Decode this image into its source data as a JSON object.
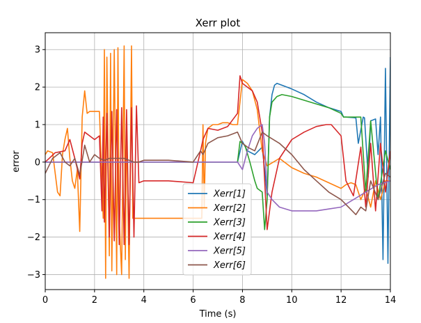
{
  "chart_data": {
    "type": "line",
    "title": "Xerr plot",
    "xlabel": "Time (s)",
    "ylabel": "error",
    "xlim": [
      0,
      14
    ],
    "ylim": [
      -3.4,
      3.45
    ],
    "xticks": [
      0,
      2,
      4,
      6,
      8,
      10,
      12,
      14
    ],
    "yticks": [
      -3,
      -2,
      -1,
      0,
      1,
      2,
      3
    ],
    "grid": true,
    "legend_position": "lower-center",
    "series": [
      {
        "name": "Xerr[1]",
        "color": "#1f77b4",
        "x": [
          0,
          7.8,
          8.0,
          8.2,
          8.5,
          8.8,
          8.9,
          9.0,
          9.1,
          9.2,
          9.3,
          9.4,
          9.6,
          10.0,
          10.5,
          11.0,
          11.5,
          12.0,
          12.1,
          12.2,
          12.6,
          12.7,
          12.9,
          12.95,
          13.1,
          13.2,
          13.4,
          13.5,
          13.6,
          13.7,
          13.8,
          13.9,
          14.0
        ],
        "y": [
          0,
          0,
          0.55,
          0.3,
          0.2,
          0.4,
          -0.2,
          -0.9,
          1.2,
          1.8,
          2.05,
          2.1,
          2.05,
          1.95,
          1.8,
          1.6,
          1.45,
          1.35,
          1.2,
          1.2,
          1.18,
          0.5,
          1.2,
          1.18,
          -0.4,
          1.1,
          1.15,
          0.2,
          1.2,
          -2.6,
          2.5,
          -2.7,
          2.8
        ]
      },
      {
        "name": "Xerr[2]",
        "color": "#ff7f0e",
        "x": [
          0,
          0.1,
          0.3,
          0.5,
          0.6,
          0.7,
          0.8,
          0.9,
          1.0,
          1.1,
          1.2,
          1.3,
          1.4,
          1.5,
          1.6,
          1.7,
          1.8,
          2.0,
          2.2,
          2.35,
          2.4,
          2.45,
          2.5,
          2.6,
          2.65,
          2.7,
          2.8,
          2.9,
          2.95,
          3.0,
          3.1,
          3.2,
          3.25,
          3.3,
          3.4,
          3.5,
          3.55,
          3.6,
          3.7,
          3.75,
          3.8,
          4.0,
          5.0,
          6.0,
          6.35,
          6.4,
          6.45,
          6.5,
          6.6,
          6.8,
          7.0,
          7.2,
          7.4,
          7.6,
          7.8,
          8.0,
          8.2,
          8.4,
          8.6,
          8.8,
          9.0,
          9.5,
          10.0,
          10.5,
          11.0,
          11.5,
          12.0,
          12.2,
          12.4,
          12.6,
          12.8,
          13.0,
          13.2,
          13.4,
          13.6,
          13.8,
          14.0
        ],
        "y": [
          0.2,
          0.3,
          0.25,
          -0.8,
          -0.9,
          0.2,
          0.6,
          0.9,
          0.1,
          -0.5,
          -0.7,
          -0.2,
          -1.85,
          1.2,
          1.9,
          1.3,
          1.35,
          1.35,
          1.35,
          -1.5,
          3.0,
          -3.1,
          2.8,
          -2.5,
          2.9,
          -2.9,
          3.0,
          -3.0,
          3.05,
          -1.5,
          -3.0,
          3.1,
          -2.6,
          1.0,
          -3.1,
          3.1,
          -1.5,
          -1.5,
          -1.5,
          -1.5,
          -1.5,
          -1.5,
          -1.5,
          -1.5,
          -1.5,
          1.0,
          -1.2,
          0.5,
          0.9,
          1.0,
          1.0,
          1.05,
          1.05,
          1.0,
          1.0,
          2.2,
          2.1,
          1.9,
          1.4,
          0.3,
          -0.1,
          0.1,
          -0.15,
          -0.3,
          -0.4,
          -0.55,
          -0.7,
          -0.6,
          -0.55,
          -0.6,
          -1.0,
          -0.7,
          -1.2,
          -0.5,
          -1.0,
          -0.5,
          -0.5
        ]
      },
      {
        "name": "Xerr[3]",
        "color": "#2ca02c",
        "x": [
          0,
          7.8,
          7.9,
          8.1,
          8.3,
          8.5,
          8.6,
          8.8,
          8.9,
          9.0,
          9.1,
          9.2,
          9.4,
          9.6,
          10.0,
          10.5,
          11.0,
          11.5,
          12.0,
          12.1,
          12.3,
          12.5,
          12.8,
          13.0,
          13.2,
          13.5,
          13.8,
          14.0
        ],
        "y": [
          0,
          0,
          0.55,
          0.45,
          0.0,
          -0.5,
          -0.7,
          -0.8,
          -1.8,
          -1.0,
          1.2,
          1.6,
          1.75,
          1.8,
          1.75,
          1.65,
          1.55,
          1.45,
          1.3,
          1.2,
          1.2,
          1.2,
          1.2,
          -0.8,
          1.1,
          -1.0,
          0.3,
          -0.2
        ]
      },
      {
        "name": "Xerr[4]",
        "color": "#d62728",
        "x": [
          0,
          0.4,
          0.8,
          1.0,
          1.2,
          1.4,
          1.5,
          1.6,
          1.8,
          2.0,
          2.2,
          2.3,
          2.35,
          2.4,
          2.5,
          2.6,
          2.7,
          2.8,
          2.9,
          3.0,
          3.1,
          3.2,
          3.3,
          3.4,
          3.5,
          3.6,
          3.7,
          3.8,
          4.0,
          5.0,
          6.0,
          6.3,
          6.4,
          6.6,
          7.0,
          7.4,
          7.8,
          7.9,
          8.0,
          8.2,
          8.4,
          8.6,
          8.8,
          9.0,
          9.2,
          9.5,
          10.0,
          10.5,
          11.0,
          11.4,
          11.6,
          12.0,
          12.2,
          12.5,
          12.8,
          13.0,
          13.2,
          13.4,
          13.6,
          13.8,
          14.0
        ],
        "y": [
          0,
          0.25,
          0.3,
          0.6,
          0.1,
          -0.45,
          0.5,
          0.8,
          0.7,
          0.6,
          0.7,
          -1.3,
          1.2,
          -1.6,
          1.3,
          -2.0,
          1.35,
          -2.1,
          1.4,
          -2.2,
          1.45,
          -2.2,
          1.4,
          -2.2,
          1.45,
          -2.0,
          1.5,
          -0.55,
          -0.5,
          -0.5,
          -0.55,
          0.3,
          0.6,
          0.9,
          0.85,
          0.95,
          1.3,
          2.3,
          2.1,
          2.0,
          1.9,
          1.6,
          0.8,
          -1.8,
          -0.8,
          0.1,
          0.6,
          0.8,
          0.95,
          1.0,
          1.0,
          0.7,
          -0.5,
          -0.9,
          0.4,
          -1.2,
          0.5,
          -1.3,
          0.5,
          -0.8,
          0.3
        ]
      },
      {
        "name": "Xerr[5]",
        "color": "#9467bd",
        "x": [
          0,
          7.8,
          8.0,
          8.2,
          8.4,
          8.6,
          8.8,
          8.9,
          9.0,
          9.2,
          9.5,
          10.0,
          10.5,
          11.0,
          11.5,
          12.0,
          12.5,
          13.0,
          13.5,
          14.0
        ],
        "y": [
          0,
          0,
          -0.2,
          0.3,
          0.7,
          0.9,
          1.0,
          0.5,
          -0.8,
          -1.0,
          -1.2,
          -1.3,
          -1.3,
          -1.3,
          -1.25,
          -1.2,
          -1.0,
          -0.8,
          -0.6,
          -0.5
        ]
      },
      {
        "name": "Xerr[6]",
        "color": "#8c564b",
        "x": [
          0,
          0.3,
          0.6,
          0.8,
          1.0,
          1.2,
          1.4,
          1.6,
          1.8,
          2.0,
          2.2,
          2.4,
          2.6,
          2.8,
          3.0,
          3.2,
          3.4,
          3.6,
          3.8,
          4.0,
          5.0,
          6.0,
          6.3,
          6.4,
          6.6,
          7.0,
          7.4,
          7.8,
          8.0,
          8.2,
          8.5,
          8.8,
          9.0,
          9.5,
          10.0,
          10.5,
          11.0,
          11.5,
          12.0,
          12.3,
          12.6,
          12.8,
          13.0,
          13.2,
          13.5,
          13.8,
          14.0
        ],
        "y": [
          -0.3,
          0.1,
          0.25,
          0.0,
          -0.1,
          0.1,
          -0.35,
          0.45,
          0.0,
          0.2,
          0.1,
          0.05,
          0.1,
          0.1,
          0.1,
          0.1,
          0.05,
          0.0,
          0.0,
          0.05,
          0.05,
          0.0,
          0.3,
          0.2,
          0.5,
          0.65,
          0.7,
          0.8,
          0.5,
          0.4,
          0.3,
          0.8,
          0.7,
          0.5,
          0.2,
          -0.2,
          -0.5,
          -0.8,
          -1.0,
          -1.2,
          -1.4,
          -1.2,
          -1.3,
          -0.5,
          -1.0,
          -0.3,
          -0.4
        ]
      }
    ]
  }
}
